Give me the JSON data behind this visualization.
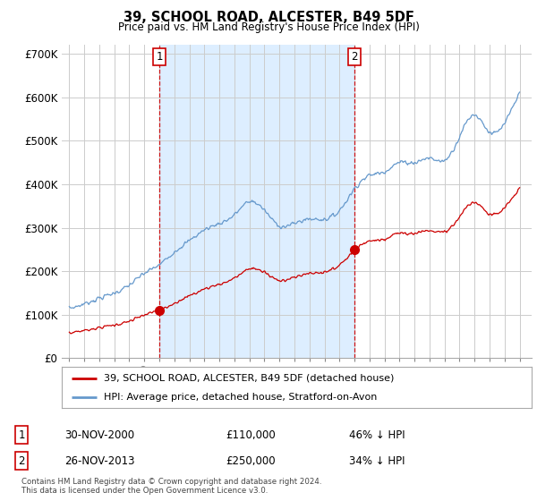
{
  "title": "39, SCHOOL ROAD, ALCESTER, B49 5DF",
  "subtitle": "Price paid vs. HM Land Registry's House Price Index (HPI)",
  "ylabel_ticks": [
    "£0",
    "£100K",
    "£200K",
    "£300K",
    "£400K",
    "£500K",
    "£600K",
    "£700K"
  ],
  "ytick_values": [
    0,
    100000,
    200000,
    300000,
    400000,
    500000,
    600000,
    700000
  ],
  "ylim": [
    0,
    720000
  ],
  "sale1": {
    "date_num": 2001.0,
    "price": 110000,
    "label": "1",
    "date_str": "30-NOV-2000",
    "pct": "46% ↓ HPI"
  },
  "sale2": {
    "date_num": 2014.0,
    "price": 250000,
    "label": "2",
    "date_str": "26-NOV-2013",
    "pct": "34% ↓ HPI"
  },
  "red_line_color": "#cc0000",
  "blue_line_color": "#6699cc",
  "shade_color": "#ddeeff",
  "grid_color": "#cccccc",
  "background_color": "#ffffff",
  "legend_label_red": "39, SCHOOL ROAD, ALCESTER, B49 5DF (detached house)",
  "legend_label_blue": "HPI: Average price, detached house, Stratford-on-Avon",
  "footnote": "Contains HM Land Registry data © Crown copyright and database right 2024.\nThis data is licensed under the Open Government Licence v3.0.",
  "table_rows": [
    {
      "num": "1",
      "date": "30-NOV-2000",
      "price": "£110,000",
      "pct": "46% ↓ HPI"
    },
    {
      "num": "2",
      "date": "26-NOV-2013",
      "price": "£250,000",
      "pct": "34% ↓ HPI"
    }
  ],
  "hpi_anchors_x": [
    1995,
    1996,
    1997,
    1998,
    1999,
    2000,
    2001,
    2002,
    2003,
    2004,
    2005,
    2006,
    2007,
    2008,
    2009,
    2010,
    2011,
    2012,
    2013,
    2014,
    2015,
    2016,
    2017,
    2018,
    2019,
    2020,
    2021,
    2022,
    2023,
    2024,
    2025
  ],
  "hpi_anchors_y": [
    115000,
    125000,
    138000,
    150000,
    168000,
    195000,
    215000,
    245000,
    270000,
    295000,
    310000,
    330000,
    360000,
    340000,
    305000,
    310000,
    320000,
    320000,
    340000,
    390000,
    420000,
    430000,
    450000,
    450000,
    460000,
    455000,
    510000,
    560000,
    520000,
    540000,
    610000
  ],
  "xlim_left": 1994.5,
  "xlim_right": 2025.8
}
